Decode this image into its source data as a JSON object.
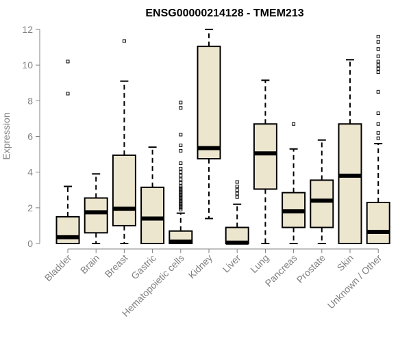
{
  "chart_data": {
    "type": "boxplot",
    "title": "ENSG00000214128 - TMEM213",
    "xlabel": "",
    "ylabel": "Expression",
    "ylim": [
      0,
      12
    ],
    "yticks": [
      0,
      2,
      4,
      6,
      8,
      10,
      12
    ],
    "box_fill": "#ede6cf",
    "categories": [
      "Bladder",
      "Brain",
      "Breast",
      "Gastric",
      "Hematopoietic cells",
      "Kidney",
      "Liver",
      "Lung",
      "Pancreas",
      "Prostate",
      "Skin",
      "Unknown / Other"
    ],
    "boxes": [
      {
        "category": "Bladder",
        "min": 0,
        "q1": 0,
        "median": 0.35,
        "q3": 1.5,
        "max": 3.2,
        "outliers": [
          8.4,
          10.2
        ]
      },
      {
        "category": "Brain",
        "min": 0,
        "q1": 0.6,
        "median": 1.75,
        "q3": 2.55,
        "max": 3.9,
        "outliers": []
      },
      {
        "category": "Breast",
        "min": 0,
        "q1": 1.0,
        "median": 1.95,
        "q3": 4.95,
        "max": 9.1,
        "outliers": [
          11.35
        ]
      },
      {
        "category": "Gastric",
        "min": 0,
        "q1": 0,
        "median": 1.4,
        "q3": 3.15,
        "max": 5.4,
        "outliers": []
      },
      {
        "category": "Hematopoietic cells",
        "min": 0,
        "q1": 0,
        "median": 0.1,
        "q3": 0.7,
        "max": 1.7,
        "outliers": [
          1.9,
          2.0,
          2.1,
          2.2,
          2.3,
          2.4,
          2.5,
          2.6,
          2.7,
          2.8,
          2.9,
          3.0,
          3.1,
          3.2,
          3.4,
          3.6,
          3.8,
          4.0,
          4.2,
          4.5,
          5.2,
          5.5,
          6.1,
          7.6,
          7.9
        ]
      },
      {
        "category": "Kidney",
        "min": 1.4,
        "q1": 4.75,
        "median": 5.35,
        "q3": 11.05,
        "max": 12.0,
        "outliers": []
      },
      {
        "category": "Liver",
        "min": 0,
        "q1": 0,
        "median": 0.05,
        "q3": 0.9,
        "max": 2.2,
        "outliers": [
          2.6,
          2.8,
          3.0,
          3.2,
          3.45
        ]
      },
      {
        "category": "Lung",
        "min": 0,
        "q1": 3.05,
        "median": 5.05,
        "q3": 6.7,
        "max": 9.15,
        "outliers": []
      },
      {
        "category": "Pancreas",
        "min": 0,
        "q1": 0.9,
        "median": 1.8,
        "q3": 2.85,
        "max": 5.3,
        "outliers": [
          6.7
        ]
      },
      {
        "category": "Prostate",
        "min": 0,
        "q1": 0.9,
        "median": 2.4,
        "q3": 3.55,
        "max": 5.8,
        "outliers": []
      },
      {
        "category": "Skin",
        "min": 0,
        "q1": 0,
        "median": 3.8,
        "q3": 6.7,
        "max": 10.3,
        "outliers": []
      },
      {
        "category": "Unknown / Other",
        "min": 0,
        "q1": 0,
        "median": 0.65,
        "q3": 2.3,
        "max": 5.6,
        "outliers": [
          5.9,
          6.2,
          6.7,
          7.3,
          8.5,
          9.6,
          9.8,
          10.0,
          10.2,
          10.5,
          10.9,
          11.3,
          11.6
        ]
      }
    ]
  }
}
